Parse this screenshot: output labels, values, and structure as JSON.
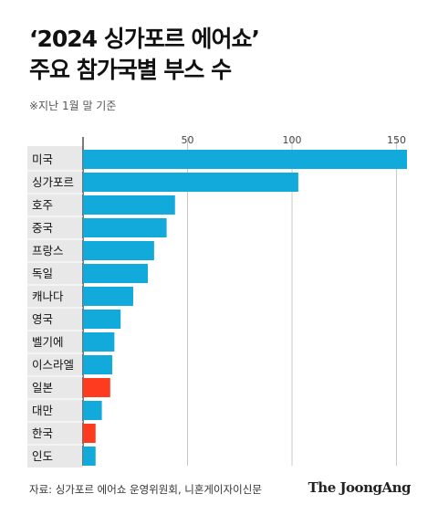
{
  "header": {
    "title_line1": "‘2024 싱가포르 에어쇼’",
    "title_line2": "주요 참가국별 부스 수",
    "note": "※지난 1월 말 기준"
  },
  "footer": {
    "source": "자료: 싱가포르 에어쇼 운영위원회, 니혼게이자이신문",
    "brand": "The JoongAng"
  },
  "chart_data": {
    "type": "bar",
    "orientation": "horizontal",
    "title": "‘2024 싱가포르 에어쇼’ 주요 참가국별 부스 수",
    "xlim": [
      0,
      155
    ],
    "xticks": [
      50,
      100,
      150
    ],
    "grid": true,
    "categories": [
      "미국",
      "싱가포르",
      "호주",
      "중국",
      "프랑스",
      "독일",
      "캐나다",
      "영국",
      "벨기에",
      "이스라엘",
      "일본",
      "대만",
      "한국",
      "인도"
    ],
    "values": [
      155,
      103,
      44,
      40,
      34,
      31,
      24,
      18,
      15,
      14,
      13,
      9,
      6,
      6
    ],
    "colors": {
      "default": "#12aadb",
      "highlight": "#ff3b1f",
      "axis": "#222222",
      "grid": "#c8c8c8",
      "label_bg": "#e8e8e8"
    },
    "highlighted": [
      "일본",
      "한국"
    ]
  }
}
